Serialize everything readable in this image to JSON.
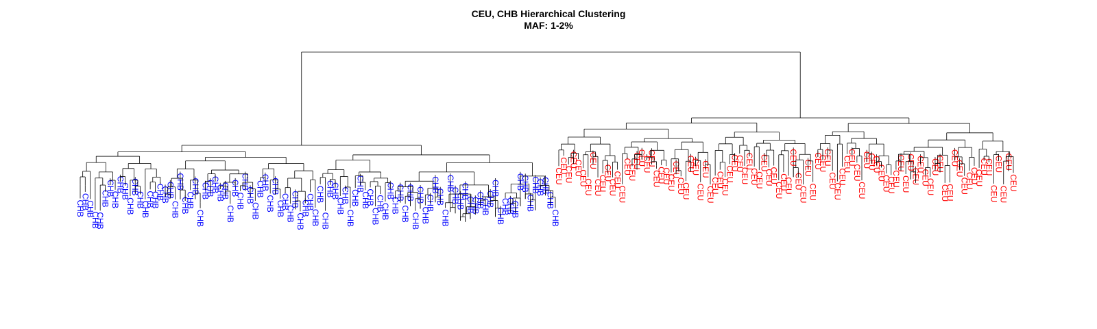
{
  "chart_data": {
    "type": "dendrogram",
    "title": "CEU, CHB Hierarchical Clustering",
    "subtitle": "MAF: 1-2%",
    "groups": [
      {
        "name": "CHB",
        "color": "#0000ff",
        "leaf_count": 96
      },
      {
        "name": "CEU",
        "color": "#ff0000",
        "leaf_count": 94
      }
    ]
  }
}
